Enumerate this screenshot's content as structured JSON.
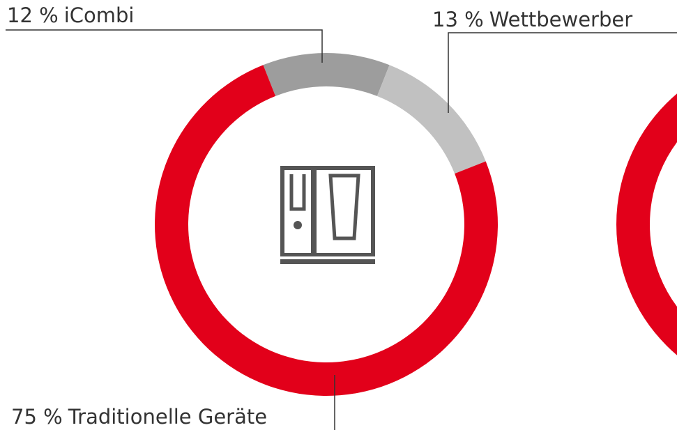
{
  "chart_data": {
    "type": "donut",
    "categories": [
      "iCombi",
      "Wettbewerber",
      "Traditionelle Geräte"
    ],
    "values": [
      12,
      13,
      75
    ],
    "value_labels": [
      "12 %",
      "13 %",
      "75 %"
    ],
    "colors": [
      "#9d9d9d",
      "#c1c1c1",
      "#e2001a"
    ]
  }
}
